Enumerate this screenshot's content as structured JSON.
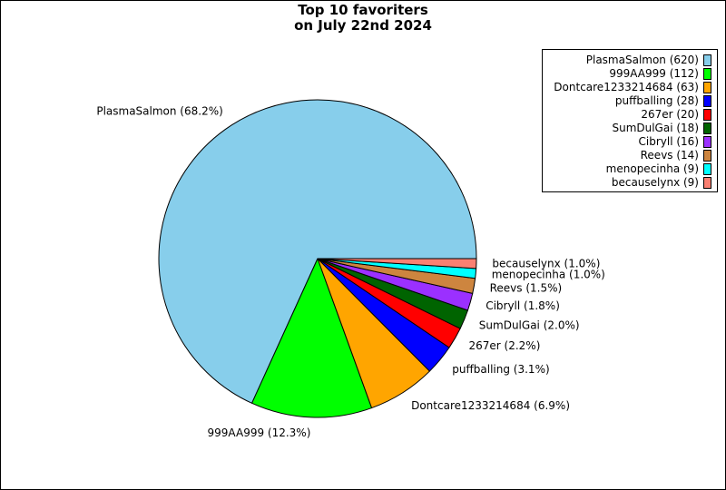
{
  "chart_data": {
    "type": "pie",
    "title_lines": [
      "Top 10 favoriters",
      "on July 22nd 2024"
    ],
    "legend_placement": "top-right",
    "slices": [
      {
        "name": "PlasmaSalmon",
        "value": 620,
        "legend": "PlasmaSalmon (620)",
        "label": "PlasmaSalmon (68.2%)",
        "color": "#87ceeb"
      },
      {
        "name": "999AA999",
        "value": 112,
        "legend": "999AA999 (112)",
        "label": "999AA999 (12.3%)",
        "color": "#00ff00"
      },
      {
        "name": "Dontcare1233214684",
        "value": 63,
        "legend": "Dontcare1233214684 (63)",
        "label": "Dontcare1233214684 (6.9%)",
        "color": "#ffa500"
      },
      {
        "name": "puffballing",
        "value": 28,
        "legend": "puffballing (28)",
        "label": "puffballing (3.1%)",
        "color": "#0000ff"
      },
      {
        "name": "267er",
        "value": 20,
        "legend": "267er (20)",
        "label": "267er (2.2%)",
        "color": "#ff0000"
      },
      {
        "name": "SumDulGai",
        "value": 18,
        "legend": "SumDulGai (18)",
        "label": "SumDulGai (2.0%)",
        "color": "#006400"
      },
      {
        "name": "Cibryll",
        "value": 16,
        "legend": "Cibryll (16)",
        "label": "Cibryll (1.8%)",
        "color": "#9b30ff"
      },
      {
        "name": "Reevs",
        "value": 14,
        "legend": "Reevs (14)",
        "label": "Reevs (1.5%)",
        "color": "#cd853f"
      },
      {
        "name": "menopecinha",
        "value": 9,
        "legend": "menopecinha (9)",
        "label": "menopecinha (1.0%)",
        "color": "#00ffff"
      },
      {
        "name": "becauselynx",
        "value": 9,
        "legend": "becauselynx (9)",
        "label": "becauselynx (1.0%)",
        "color": "#fa8072"
      }
    ]
  }
}
